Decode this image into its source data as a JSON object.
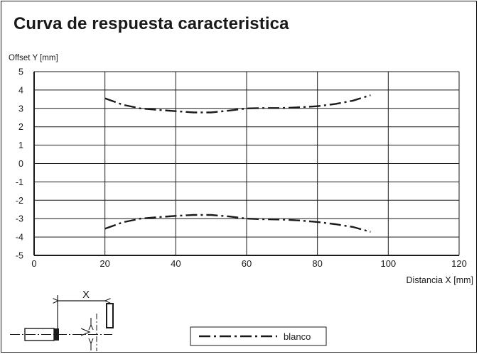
{
  "chart_data": {
    "type": "line",
    "title": "Curva de respuesta caracteristica",
    "ylabel": "Offset Y [mm]",
    "xlabel": "Distancia X [mm]",
    "xlim": [
      0,
      120
    ],
    "ylim": [
      -5,
      5
    ],
    "xticks": [
      0,
      20,
      40,
      60,
      80,
      100,
      120
    ],
    "yticks": [
      5,
      4,
      3,
      2,
      1,
      0,
      -1,
      -2,
      -3,
      -4,
      -5
    ],
    "grid": true,
    "legend_position": "bottom-center",
    "series": [
      {
        "name": "blanco",
        "style": "dash-dot",
        "color": "#1a1a1a",
        "segments": [
          [
            [
              20,
              3.55
            ],
            [
              25,
              3.2
            ],
            [
              30,
              3.0
            ],
            [
              35,
              2.92
            ],
            [
              40,
              2.85
            ],
            [
              45,
              2.78
            ],
            [
              50,
              2.78
            ],
            [
              55,
              2.88
            ],
            [
              60,
              3.0
            ],
            [
              65,
              3.02
            ],
            [
              70,
              3.02
            ],
            [
              75,
              3.06
            ],
            [
              80,
              3.12
            ],
            [
              85,
              3.24
            ],
            [
              90,
              3.42
            ],
            [
              95,
              3.72
            ]
          ],
          [
            [
              20,
              -3.55
            ],
            [
              25,
              -3.2
            ],
            [
              30,
              -3.0
            ],
            [
              35,
              -2.92
            ],
            [
              40,
              -2.85
            ],
            [
              45,
              -2.8
            ],
            [
              50,
              -2.8
            ],
            [
              55,
              -2.88
            ],
            [
              60,
              -3.0
            ],
            [
              65,
              -3.03
            ],
            [
              70,
              -3.05
            ],
            [
              75,
              -3.1
            ],
            [
              80,
              -3.18
            ],
            [
              85,
              -3.3
            ],
            [
              90,
              -3.45
            ],
            [
              95,
              -3.72
            ]
          ]
        ]
      }
    ]
  },
  "diagram": {
    "x_label": "X"
  }
}
